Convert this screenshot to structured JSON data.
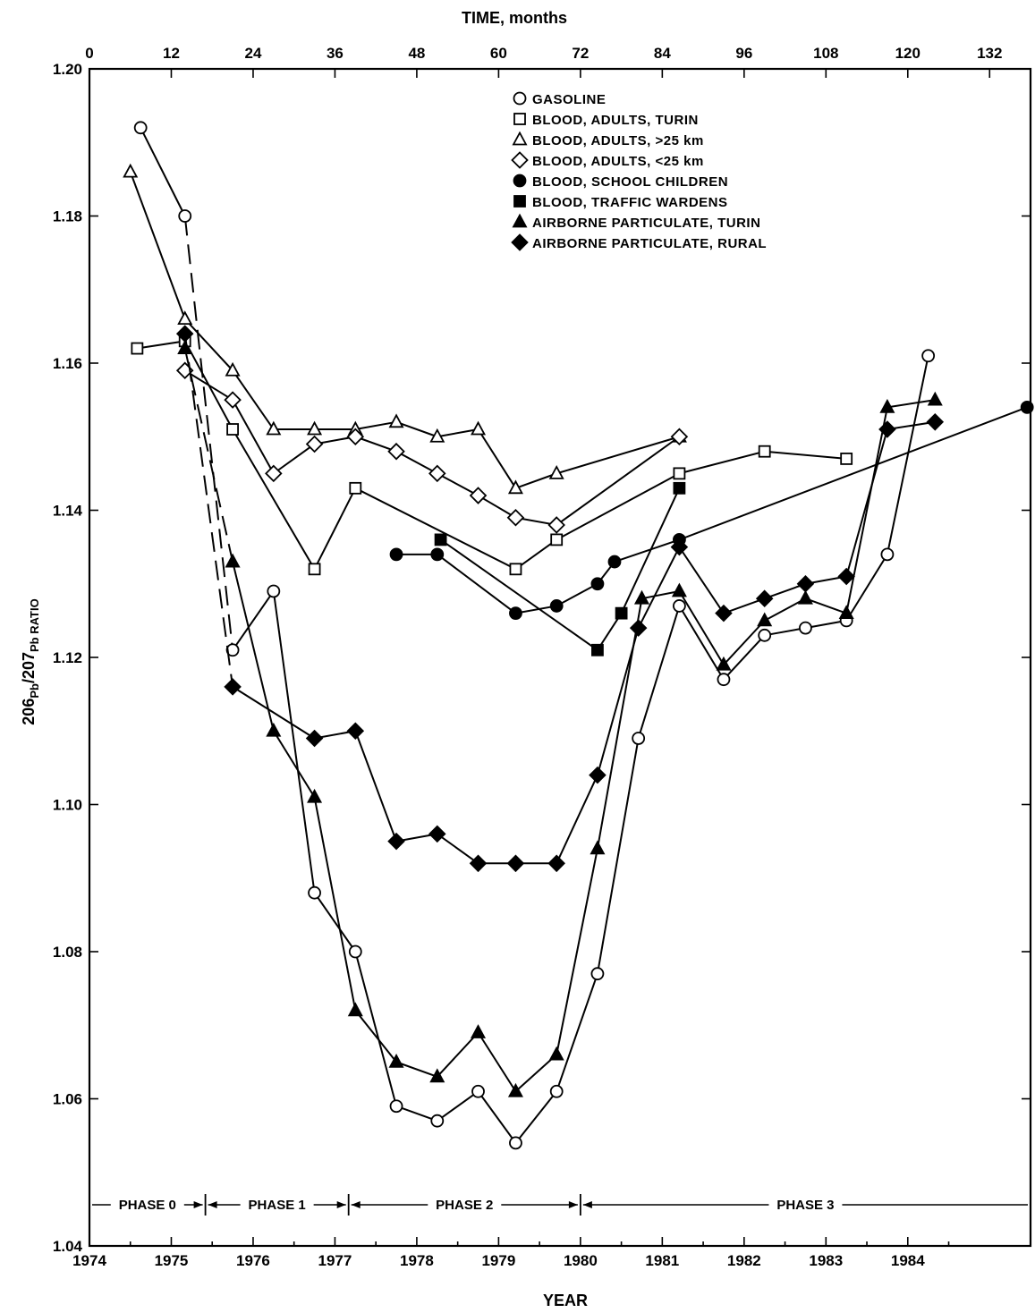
{
  "chart_data": {
    "type": "line",
    "top_axis": {
      "title": "TIME, months",
      "ticks": [
        0,
        12,
        24,
        36,
        48,
        60,
        72,
        84,
        96,
        108,
        120,
        132
      ]
    },
    "x_axis": {
      "title": "YEAR",
      "ticks": [
        "1974",
        "1975",
        "1976",
        "1977",
        "1978",
        "1979",
        "1980",
        "1981",
        "1982",
        "1983",
        "1984"
      ],
      "range_months": [
        0,
        138
      ]
    },
    "y_axis": {
      "title_main": "206",
      "title_sub1": "Pb",
      "title_mid": "/207",
      "title_sub2": "Pb RATIO",
      "ticks": [
        "1.04",
        "1.06",
        "1.08",
        "1.10",
        "1.12",
        "1.14",
        "1.16",
        "1.18",
        "1.20"
      ],
      "range": [
        1.04,
        1.2
      ]
    },
    "legend_position": "top-right",
    "series": [
      {
        "name": "GASOLINE",
        "marker": "circle-open",
        "points": [
          [
            7.5,
            1.192
          ],
          [
            14,
            1.18
          ],
          [
            21,
            1.121
          ],
          [
            27,
            1.129
          ],
          [
            33,
            1.088
          ],
          [
            39,
            1.08
          ],
          [
            45,
            1.059
          ],
          [
            51,
            1.057
          ],
          [
            57,
            1.061
          ],
          [
            62.5,
            1.054
          ],
          [
            68.5,
            1.061
          ],
          [
            74.5,
            1.077
          ],
          [
            80.5,
            1.109
          ],
          [
            86.5,
            1.127
          ],
          [
            93,
            1.117
          ],
          [
            99,
            1.123
          ],
          [
            105,
            1.124
          ],
          [
            111,
            1.125
          ],
          [
            117,
            1.134
          ],
          [
            123,
            1.161
          ]
        ]
      },
      {
        "name": "BLOOD, ADULTS, TURIN",
        "marker": "square-open",
        "points": [
          [
            7,
            1.162
          ],
          [
            14,
            1.163
          ],
          [
            21,
            1.151
          ],
          [
            33,
            1.132
          ],
          [
            39,
            1.143
          ],
          [
            62.5,
            1.132
          ],
          [
            68.5,
            1.136
          ],
          [
            86.5,
            1.145
          ],
          [
            99,
            1.148
          ],
          [
            111,
            1.147
          ]
        ]
      },
      {
        "name": "BLOOD, ADULTS, >25 km",
        "marker": "triangle-open",
        "points": [
          [
            6,
            1.186
          ],
          [
            14,
            1.166
          ],
          [
            21,
            1.159
          ],
          [
            27,
            1.151
          ],
          [
            33,
            1.151
          ],
          [
            39,
            1.151
          ],
          [
            45,
            1.152
          ],
          [
            51,
            1.15
          ],
          [
            57,
            1.151
          ],
          [
            62.5,
            1.143
          ],
          [
            68.5,
            1.145
          ],
          [
            86.5,
            1.15
          ]
        ]
      },
      {
        "name": "BLOOD, ADULTS, <25 km",
        "marker": "diamond-open",
        "points": [
          [
            14,
            1.159
          ],
          [
            21,
            1.155
          ],
          [
            27,
            1.145
          ],
          [
            33,
            1.149
          ],
          [
            39,
            1.15
          ],
          [
            45,
            1.148
          ],
          [
            51,
            1.145
          ],
          [
            57,
            1.142
          ],
          [
            62.5,
            1.139
          ],
          [
            68.5,
            1.138
          ],
          [
            86.5,
            1.15
          ]
        ]
      },
      {
        "name": "BLOOD, SCHOOL CHILDREN",
        "marker": "circle-filled",
        "points": [
          [
            45,
            1.134
          ],
          [
            51,
            1.134
          ],
          [
            62.5,
            1.126
          ],
          [
            68.5,
            1.127
          ],
          [
            74.5,
            1.13
          ],
          [
            77,
            1.133
          ],
          [
            86.5,
            1.136
          ],
          [
            137.5,
            1.154
          ]
        ]
      },
      {
        "name": "BLOOD, TRAFFIC WARDENS",
        "marker": "square-filled",
        "points": [
          [
            51.5,
            1.136
          ],
          [
            74.5,
            1.121
          ],
          [
            78,
            1.126
          ],
          [
            86.5,
            1.143
          ]
        ]
      },
      {
        "name": "AIRBORNE PARTICULATE, TURIN",
        "marker": "triangle-filled",
        "points": [
          [
            14,
            1.162
          ],
          [
            21,
            1.133
          ],
          [
            27,
            1.11
          ],
          [
            33,
            1.101
          ],
          [
            39,
            1.072
          ],
          [
            45,
            1.065
          ],
          [
            51,
            1.063
          ],
          [
            57,
            1.069
          ],
          [
            62.5,
            1.061
          ],
          [
            68.5,
            1.066
          ],
          [
            74.5,
            1.094
          ],
          [
            81,
            1.128
          ],
          [
            86.5,
            1.129
          ],
          [
            93,
            1.119
          ],
          [
            99,
            1.125
          ],
          [
            105,
            1.128
          ],
          [
            111,
            1.126
          ],
          [
            117,
            1.154
          ],
          [
            124,
            1.155
          ]
        ]
      },
      {
        "name": "AIRBORNE PARTICULATE, RURAL",
        "marker": "diamond-filled",
        "points": [
          [
            14,
            1.164
          ],
          [
            21,
            1.116
          ],
          [
            33,
            1.109
          ],
          [
            39,
            1.11
          ],
          [
            45,
            1.095
          ],
          [
            51,
            1.096
          ],
          [
            57,
            1.092
          ],
          [
            62.5,
            1.092
          ],
          [
            68.5,
            1.092
          ],
          [
            74.5,
            1.104
          ],
          [
            80.5,
            1.124
          ],
          [
            86.5,
            1.135
          ],
          [
            93,
            1.126
          ],
          [
            99,
            1.128
          ],
          [
            105,
            1.13
          ],
          [
            111,
            1.131
          ],
          [
            117,
            1.151
          ],
          [
            124,
            1.152
          ]
        ]
      }
    ],
    "phases": [
      {
        "label": "PHASE 0",
        "from": 0,
        "to": 17
      },
      {
        "label": "PHASE 1",
        "from": 17,
        "to": 38
      },
      {
        "label": "PHASE 2",
        "from": 38,
        "to": 72
      },
      {
        "label": "PHASE 3",
        "from": 72,
        "to": 138
      }
    ]
  }
}
